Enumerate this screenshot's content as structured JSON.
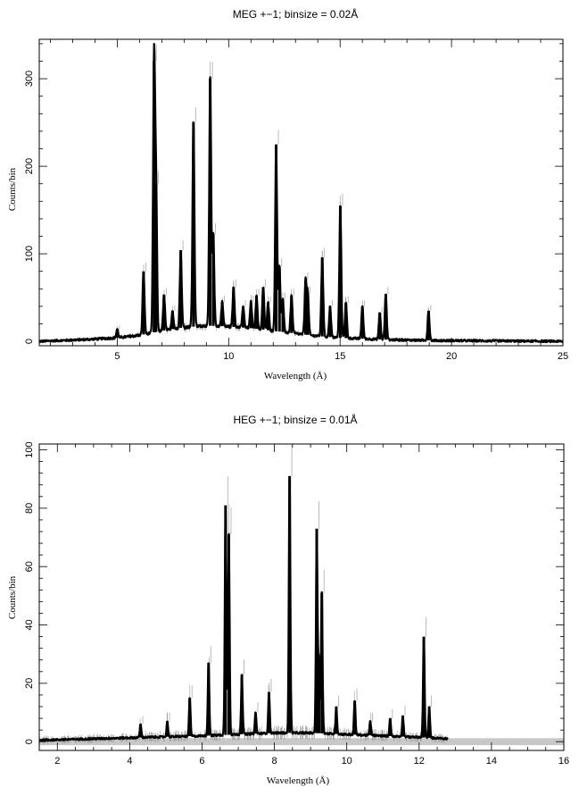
{
  "chart_data": [
    {
      "type": "line",
      "title": "MEG +−1; binsize = 0.02Å",
      "xlabel": "Wavelength (Å)",
      "ylabel": "Counts/bin",
      "xlim": [
        1.5,
        25
      ],
      "ylim": [
        -5,
        345
      ],
      "xticks": [
        5,
        10,
        15,
        20,
        25
      ],
      "yticks": [
        0,
        100,
        200,
        300
      ],
      "grid": false,
      "continuum": [
        [
          1.5,
          0
        ],
        [
          3.5,
          2
        ],
        [
          5,
          4
        ],
        [
          6,
          7
        ],
        [
          7,
          12
        ],
        [
          8,
          16
        ],
        [
          9,
          18
        ],
        [
          10,
          17
        ],
        [
          11,
          15
        ],
        [
          12,
          12
        ],
        [
          13,
          9
        ],
        [
          14,
          6
        ],
        [
          15,
          4
        ],
        [
          16,
          3
        ],
        [
          17,
          2
        ],
        [
          18,
          1.5
        ],
        [
          19,
          1
        ],
        [
          25,
          0
        ]
      ],
      "lines": [
        {
          "x": 5.0,
          "y": 14
        },
        {
          "x": 6.18,
          "y": 80
        },
        {
          "x": 6.65,
          "y": 320
        },
        {
          "x": 6.74,
          "y": 180
        },
        {
          "x": 7.1,
          "y": 53
        },
        {
          "x": 7.48,
          "y": 35
        },
        {
          "x": 7.85,
          "y": 104
        },
        {
          "x": 8.42,
          "y": 250
        },
        {
          "x": 9.17,
          "y": 300
        },
        {
          "x": 9.31,
          "y": 123
        },
        {
          "x": 9.71,
          "y": 45
        },
        {
          "x": 10.22,
          "y": 62
        },
        {
          "x": 10.65,
          "y": 40
        },
        {
          "x": 11.0,
          "y": 45
        },
        {
          "x": 11.25,
          "y": 52
        },
        {
          "x": 11.55,
          "y": 62
        },
        {
          "x": 11.77,
          "y": 44
        },
        {
          "x": 12.13,
          "y": 225
        },
        {
          "x": 12.28,
          "y": 85
        },
        {
          "x": 12.43,
          "y": 48
        },
        {
          "x": 12.82,
          "y": 52
        },
        {
          "x": 13.45,
          "y": 70
        },
        {
          "x": 13.55,
          "y": 55
        },
        {
          "x": 14.2,
          "y": 96
        },
        {
          "x": 14.55,
          "y": 40
        },
        {
          "x": 15.01,
          "y": 155
        },
        {
          "x": 15.26,
          "y": 44
        },
        {
          "x": 16.0,
          "y": 40
        },
        {
          "x": 16.78,
          "y": 33
        },
        {
          "x": 17.05,
          "y": 54
        },
        {
          "x": 18.97,
          "y": 35
        }
      ]
    },
    {
      "type": "line",
      "title": "HEG +−1; binsize = 0.01Å",
      "xlabel": "Wavelength (Å)",
      "ylabel": "Counts/bin",
      "xlim": [
        1.5,
        16
      ],
      "ylim": [
        -3,
        102
      ],
      "xticks": [
        2,
        4,
        6,
        8,
        10,
        12,
        14,
        16
      ],
      "yticks": [
        0,
        20,
        40,
        60,
        80,
        100
      ],
      "grid": false,
      "data_end": 12.8,
      "continuum": [
        [
          1.5,
          0.5
        ],
        [
          3,
          1
        ],
        [
          4.5,
          1.5
        ],
        [
          6,
          2
        ],
        [
          7,
          2.5
        ],
        [
          8,
          3
        ],
        [
          9,
          3
        ],
        [
          10,
          2.5
        ],
        [
          11,
          2
        ],
        [
          12,
          1.5
        ],
        [
          12.8,
          1
        ]
      ],
      "lines": [
        {
          "x": 4.3,
          "y": 6
        },
        {
          "x": 5.04,
          "y": 7
        },
        {
          "x": 5.66,
          "y": 15
        },
        {
          "x": 6.18,
          "y": 27
        },
        {
          "x": 6.65,
          "y": 81
        },
        {
          "x": 6.74,
          "y": 71
        },
        {
          "x": 7.1,
          "y": 23
        },
        {
          "x": 7.48,
          "y": 10
        },
        {
          "x": 7.85,
          "y": 17
        },
        {
          "x": 8.42,
          "y": 91
        },
        {
          "x": 9.17,
          "y": 73
        },
        {
          "x": 9.23,
          "y": 28
        },
        {
          "x": 9.31,
          "y": 51
        },
        {
          "x": 9.71,
          "y": 12
        },
        {
          "x": 10.22,
          "y": 14
        },
        {
          "x": 10.65,
          "y": 7
        },
        {
          "x": 11.2,
          "y": 8
        },
        {
          "x": 11.55,
          "y": 9
        },
        {
          "x": 12.13,
          "y": 36
        },
        {
          "x": 12.28,
          "y": 12
        }
      ]
    }
  ]
}
